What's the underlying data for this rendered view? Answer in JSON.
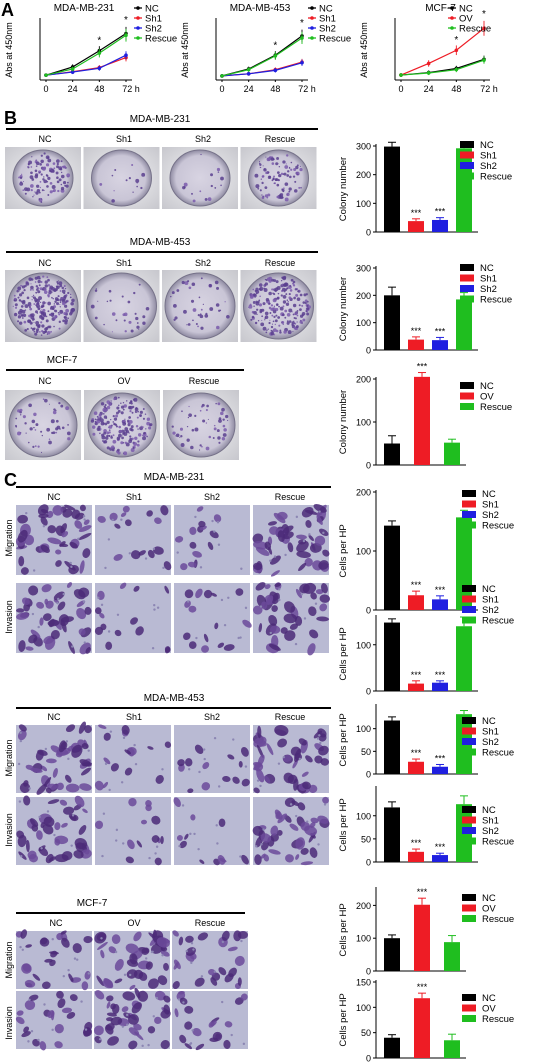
{
  "panels": {
    "A": "A",
    "B": "B",
    "C": "C"
  },
  "colors": {
    "NC": "#000000",
    "Sh1": "#ee1c25",
    "Sh2": "#1f1fe0",
    "Rescue": "#1fbe1f",
    "OV": "#ee1c25"
  },
  "panel_A": [
    {
      "title": "MDA-MB-231",
      "ylabel": "Abs at 450nm",
      "x": [
        0,
        24,
        48,
        72
      ],
      "xunit": "h",
      "legend": [
        "NC",
        "Sh1",
        "Sh2",
        "Rescue"
      ],
      "series": [
        {
          "name": "NC",
          "values": [
            0.14,
            0.38,
            0.85,
            1.35
          ]
        },
        {
          "name": "Sh1",
          "values": [
            0.14,
            0.24,
            0.36,
            0.65
          ]
        },
        {
          "name": "Sh2",
          "values": [
            0.14,
            0.23,
            0.34,
            0.72
          ]
        },
        {
          "name": "Rescue",
          "values": [
            0.14,
            0.32,
            0.78,
            1.3
          ]
        }
      ],
      "ylim": [
        0,
        1.8
      ],
      "stars": [
        48,
        72
      ],
      "star": "*"
    },
    {
      "title": "MDA-MB-453",
      "ylabel": "Abs at 450nm",
      "x": [
        0,
        24,
        48,
        72
      ],
      "xunit": "h",
      "legend": [
        "NC",
        "Sh1",
        "Sh2",
        "Rescue"
      ],
      "series": [
        {
          "name": "NC",
          "values": [
            0.12,
            0.32,
            0.72,
            1.28
          ]
        },
        {
          "name": "Sh1",
          "values": [
            0.12,
            0.18,
            0.3,
            0.52
          ]
        },
        {
          "name": "Sh2",
          "values": [
            0.12,
            0.18,
            0.28,
            0.5
          ]
        },
        {
          "name": "Rescue",
          "values": [
            0.12,
            0.3,
            0.7,
            1.22
          ]
        }
      ],
      "ylim": [
        0,
        1.8
      ],
      "stars": [
        48,
        72
      ],
      "star": "*"
    },
    {
      "title": "MCF-7",
      "ylabel": "Abs at 450nm",
      "x": [
        0,
        24,
        48,
        72
      ],
      "xunit": "h",
      "legend": [
        "NC",
        "OV",
        "Rescue"
      ],
      "series": [
        {
          "name": "NC",
          "values": [
            0.12,
            0.18,
            0.28,
            0.5
          ]
        },
        {
          "name": "OV",
          "values": [
            0.12,
            0.4,
            0.72,
            1.25
          ]
        },
        {
          "name": "Rescue",
          "values": [
            0.12,
            0.17,
            0.25,
            0.48
          ]
        }
      ],
      "ylim": [
        0,
        1.5
      ],
      "stars": [
        48,
        72
      ],
      "star": "*"
    }
  ],
  "panel_B": {
    "rows": [
      {
        "title": "MDA-MB-231",
        "dish_labels": [
          "NC",
          "Sh1",
          "Sh2",
          "Rescue"
        ]
      },
      {
        "title": "MDA-MB-453",
        "dish_labels": [
          "NC",
          "Sh1",
          "Sh2",
          "Rescue"
        ]
      },
      {
        "title": "MCF-7",
        "dish_labels": [
          "NC",
          "OV",
          "Rescue"
        ]
      }
    ]
  },
  "panel_C": {
    "rows": [
      {
        "title": "MDA-MB-231",
        "column_labels": [
          "NC",
          "Sh1",
          "Sh2",
          "Rescue"
        ],
        "row_labels": [
          "Migration",
          "Invasion"
        ]
      },
      {
        "title": "MDA-MB-453",
        "column_labels": [
          "NC",
          "Sh1",
          "Sh2",
          "Rescue"
        ],
        "row_labels": [
          "Migration",
          "Invasion"
        ]
      },
      {
        "title": "MCF-7",
        "column_labels": [
          "NC",
          "OV",
          "Rescue"
        ],
        "row_labels": [
          "Migration",
          "Invasion"
        ]
      }
    ]
  },
  "chart_data": [
    {
      "type": "bar",
      "ylabel": "Colony number",
      "categories": [
        "NC",
        "Sh1",
        "Sh2",
        "Rescue"
      ],
      "values": [
        298,
        38,
        42,
        292
      ],
      "errors": [
        15,
        8,
        8,
        18
      ],
      "ylim": [
        0,
        300
      ],
      "yticks": [
        0,
        100,
        200,
        300
      ],
      "stars": [
        "",
        "***",
        "***",
        ""
      ],
      "legend": [
        "NC",
        "Sh1",
        "Sh2",
        "Rescue"
      ]
    },
    {
      "type": "bar",
      "ylabel": "Colony number",
      "categories": [
        "NC",
        "Sh1",
        "Sh2",
        "Rescue"
      ],
      "values": [
        200,
        38,
        36,
        185
      ],
      "errors": [
        30,
        10,
        10,
        25
      ],
      "ylim": [
        0,
        300
      ],
      "yticks": [
        0,
        100,
        200,
        300
      ],
      "stars": [
        "",
        "***",
        "***",
        ""
      ],
      "legend": [
        "NC",
        "Sh1",
        "Sh2",
        "Rescue"
      ]
    },
    {
      "type": "bar",
      "ylabel": "Colony number",
      "categories": [
        "NC",
        "OV",
        "Rescue"
      ],
      "values": [
        50,
        205,
        52
      ],
      "errors": [
        18,
        10,
        8
      ],
      "ylim": [
        0,
        200
      ],
      "yticks": [
        0,
        100,
        200
      ],
      "stars": [
        "",
        "***",
        ""
      ],
      "legend": [
        "NC",
        "OV",
        "Rescue"
      ]
    },
    {
      "type": "bar",
      "ylabel": "Cells per HP",
      "categories": [
        "NC",
        "Sh1",
        "Sh2",
        "Rescue"
      ],
      "values": [
        143,
        25,
        18,
        157
      ],
      "errors": [
        8,
        7,
        6,
        12
      ],
      "ylim": [
        0,
        200
      ],
      "yticks": [
        0,
        100,
        200
      ],
      "stars": [
        "",
        "***",
        "***",
        ""
      ],
      "legend": [
        "NC",
        "Sh1",
        "Sh2",
        "Rescue"
      ]
    },
    {
      "type": "bar",
      "ylabel": "Cells per HP",
      "categories": [
        "NC",
        "Sh1",
        "Sh2",
        "Rescue"
      ],
      "values": [
        148,
        16,
        18,
        140
      ],
      "errors": [
        8,
        6,
        4,
        20
      ],
      "ylim": [
        0,
        160
      ],
      "yticks": [
        0,
        100
      ],
      "stars": [
        "",
        "***",
        "***",
        ""
      ],
      "legend": [
        "NC",
        "Sh1",
        "Sh2",
        "Rescue"
      ]
    },
    {
      "type": "bar",
      "ylabel": "Cells per HP",
      "categories": [
        "NC",
        "Sh1",
        "Sh2",
        "Rescue"
      ],
      "values": [
        118,
        27,
        16,
        132
      ],
      "errors": [
        8,
        6,
        5,
        8
      ],
      "ylim": [
        0,
        150
      ],
      "yticks": [
        0,
        50,
        100
      ],
      "stars": [
        "",
        "***",
        "***",
        ""
      ],
      "legend": [
        "NC",
        "Sh1",
        "Sh2",
        "Rescue"
      ]
    },
    {
      "type": "bar",
      "ylabel": "Cells per HP",
      "categories": [
        "NC",
        "Sh1",
        "Sh2",
        "Rescue"
      ],
      "values": [
        118,
        22,
        15,
        125
      ],
      "errors": [
        12,
        6,
        4,
        18
      ],
      "ylim": [
        0,
        160
      ],
      "yticks": [
        0,
        50,
        100
      ],
      "stars": [
        "",
        "***",
        "***",
        ""
      ],
      "legend": [
        "NC",
        "Sh1",
        "Sh2",
        "Rescue"
      ]
    },
    {
      "type": "bar",
      "ylabel": "Cells per HP",
      "categories": [
        "NC",
        "OV",
        "Rescue"
      ],
      "values": [
        100,
        202,
        88
      ],
      "errors": [
        10,
        20,
        20
      ],
      "ylim": [
        0,
        250
      ],
      "yticks": [
        0,
        100,
        200
      ],
      "stars": [
        "",
        "***",
        ""
      ],
      "legend": [
        "NC",
        "OV",
        "Rescue"
      ]
    },
    {
      "type": "bar",
      "ylabel": "Cells per HP",
      "categories": [
        "NC",
        "OV",
        "Rescue"
      ],
      "values": [
        40,
        118,
        35
      ],
      "errors": [
        6,
        10,
        12
      ],
      "ylim": [
        0,
        150
      ],
      "yticks": [
        0,
        50,
        100,
        150
      ],
      "stars": [
        "",
        "***",
        ""
      ],
      "legend": [
        "NC",
        "OV",
        "Rescue"
      ]
    }
  ]
}
